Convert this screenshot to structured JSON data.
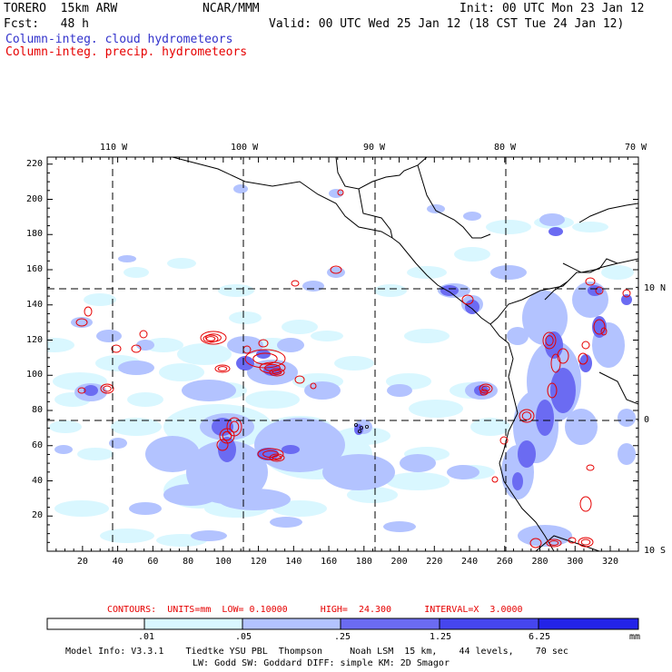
{
  "header": {
    "model": "TORERO  15km ARW",
    "org": "NCAR/MMM",
    "init": "Init: 00 UTC Mon 23 Jan 12",
    "fcst": "Fcst:   48 h",
    "valid": "Valid: 00 UTC Wed 25 Jan 12 (18 CST Tue 24 Jan 12)",
    "legend_blue": "Column-integ. cloud hydrometeors",
    "legend_red": "Column-integ. precip. hydrometeors"
  },
  "colors": {
    "cloud": "#3333cc",
    "precip": "#e60000",
    "lev1": "#d9f7ff",
    "lev2": "#b3c3ff",
    "lev3": "#9c9cf2",
    "lev4": "#6b6bf2",
    "lev5": "#4646ee",
    "lev6": "#2323e8"
  },
  "axes": {
    "top_lon": [
      "110 W",
      "100 W",
      "90 W",
      "80 W",
      "70 W"
    ],
    "right_lat": [
      "10 N",
      "0",
      "10 S"
    ],
    "x_ticks": [
      "20",
      "40",
      "60",
      "80",
      "100",
      "120",
      "140",
      "160",
      "180",
      "200",
      "220",
      "240",
      "260",
      "280",
      "300",
      "320"
    ],
    "y_ticks": [
      "220",
      "200",
      "180",
      "160",
      "140",
      "120",
      "100",
      "80",
      "60",
      "40",
      "20"
    ]
  },
  "contours": {
    "text": "CONTOURS:  UNITS=mm  LOW= 0.10000      HIGH=  24.300      INTERVAL=X  3.0000"
  },
  "colorbar": {
    "labels": [
      ".01",
      ".05",
      ".25",
      "1.25",
      "6.25"
    ],
    "unit": "mm"
  },
  "footer": {
    "line1": "Model Info: V3.3.1    Tiedtke YSU PBL  Thompson     Noah LSM  15 km,    44 levels,    70 sec",
    "line2": "LW: Godd SW: Goddard DIFF: simple KM: 2D Smagor"
  }
}
